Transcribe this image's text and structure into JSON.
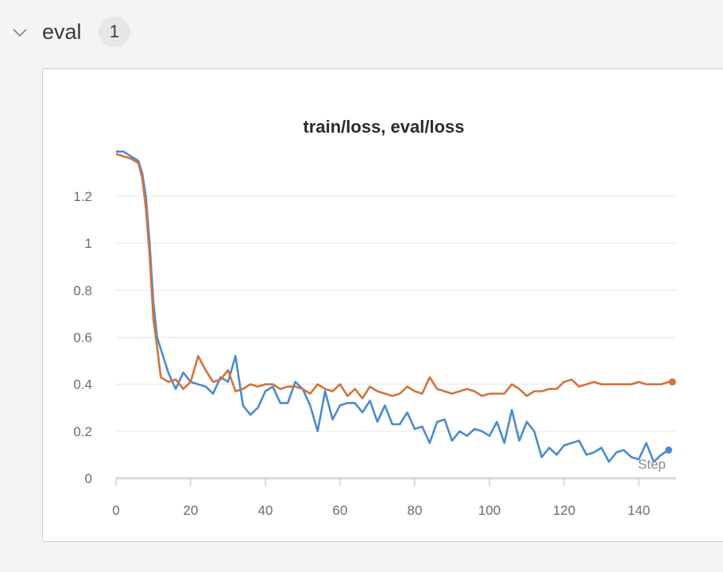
{
  "section": {
    "title": "eval",
    "count": "1"
  },
  "colors": {
    "train_loss": "#4a8bd0",
    "eval_loss": "#d2733a",
    "grid": "#e6e6e6",
    "panel_bg": "#ffffff",
    "page_bg": "#f4f4f4"
  },
  "chart_data": {
    "type": "line",
    "title": "train/loss, eval/loss",
    "xlabel": "Step",
    "ylabel": "",
    "xlim": [
      0,
      150
    ],
    "ylim": [
      0,
      1.45
    ],
    "x_ticks": [
      0,
      20,
      40,
      60,
      80,
      100,
      120,
      140
    ],
    "y_ticks": [
      0,
      0.2,
      0.4,
      0.6,
      0.8,
      1,
      1.2
    ],
    "y_tick_labels": [
      "0",
      "0.2",
      "0.4",
      "0.6",
      "0.8",
      "1",
      "1.2"
    ],
    "grid": "horizontal",
    "legend": "none",
    "series": [
      {
        "id": "train_loss",
        "x": [
          0,
          2,
          4,
          6,
          7,
          8,
          9,
          10,
          11,
          12,
          14,
          16,
          18,
          20,
          22,
          24,
          26,
          28,
          30,
          32,
          34,
          36,
          38,
          40,
          42,
          44,
          46,
          48,
          50,
          52,
          54,
          56,
          58,
          60,
          62,
          64,
          66,
          68,
          70,
          72,
          74,
          76,
          78,
          80,
          82,
          84,
          86,
          88,
          90,
          92,
          94,
          96,
          98,
          100,
          102,
          104,
          106,
          108,
          110,
          112,
          114,
          116,
          118,
          120,
          122,
          124,
          126,
          128,
          130,
          132,
          134,
          136,
          138,
          140,
          142,
          144,
          146,
          148
        ],
        "y": [
          1.39,
          1.39,
          1.37,
          1.35,
          1.3,
          1.2,
          1.0,
          0.75,
          0.6,
          0.55,
          0.45,
          0.38,
          0.45,
          0.41,
          0.4,
          0.39,
          0.36,
          0.43,
          0.41,
          0.52,
          0.31,
          0.27,
          0.3,
          0.37,
          0.39,
          0.32,
          0.32,
          0.41,
          0.38,
          0.31,
          0.2,
          0.37,
          0.25,
          0.31,
          0.32,
          0.32,
          0.28,
          0.33,
          0.24,
          0.31,
          0.23,
          0.23,
          0.28,
          0.21,
          0.22,
          0.15,
          0.24,
          0.25,
          0.16,
          0.2,
          0.18,
          0.21,
          0.2,
          0.18,
          0.24,
          0.15,
          0.29,
          0.16,
          0.24,
          0.2,
          0.09,
          0.13,
          0.1,
          0.14,
          0.15,
          0.16,
          0.1,
          0.11,
          0.13,
          0.07,
          0.11,
          0.12,
          0.09,
          0.08,
          0.15,
          0.07,
          0.1,
          0.12
        ]
      },
      {
        "id": "eval_loss",
        "x": [
          0,
          2,
          4,
          6,
          7,
          8,
          9,
          10,
          11,
          12,
          14,
          16,
          18,
          20,
          22,
          24,
          26,
          28,
          30,
          32,
          34,
          36,
          38,
          40,
          42,
          44,
          46,
          48,
          50,
          52,
          54,
          56,
          58,
          60,
          62,
          64,
          66,
          68,
          70,
          72,
          74,
          76,
          78,
          80,
          82,
          84,
          86,
          88,
          90,
          92,
          94,
          96,
          98,
          100,
          102,
          104,
          106,
          108,
          110,
          112,
          114,
          116,
          118,
          120,
          122,
          124,
          126,
          128,
          130,
          132,
          134,
          136,
          138,
          140,
          142,
          144,
          146,
          148,
          149
        ],
        "y": [
          1.38,
          1.37,
          1.36,
          1.34,
          1.28,
          1.15,
          0.95,
          0.68,
          0.56,
          0.43,
          0.41,
          0.42,
          0.38,
          0.41,
          0.52,
          0.46,
          0.41,
          0.42,
          0.46,
          0.37,
          0.38,
          0.4,
          0.39,
          0.4,
          0.4,
          0.38,
          0.39,
          0.39,
          0.38,
          0.36,
          0.4,
          0.38,
          0.37,
          0.4,
          0.35,
          0.38,
          0.34,
          0.39,
          0.37,
          0.36,
          0.35,
          0.36,
          0.39,
          0.37,
          0.36,
          0.43,
          0.38,
          0.37,
          0.36,
          0.37,
          0.38,
          0.37,
          0.35,
          0.36,
          0.36,
          0.36,
          0.4,
          0.38,
          0.35,
          0.37,
          0.37,
          0.38,
          0.38,
          0.41,
          0.42,
          0.39,
          0.4,
          0.41,
          0.4,
          0.4,
          0.4,
          0.4,
          0.4,
          0.41,
          0.4,
          0.4,
          0.4,
          0.41,
          0.41
        ]
      }
    ]
  }
}
